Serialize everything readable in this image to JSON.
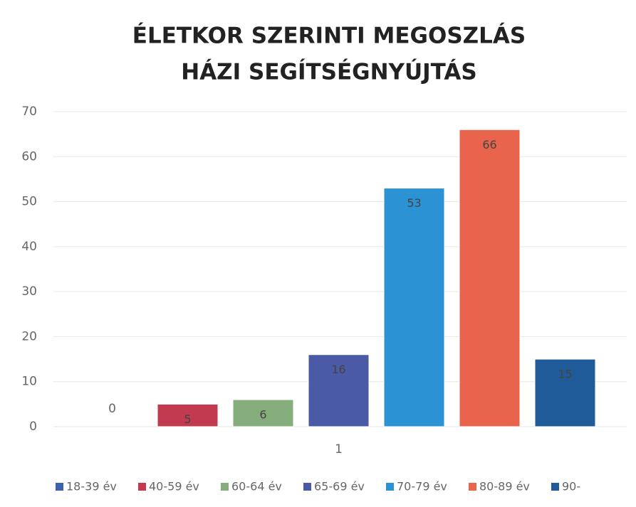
{
  "chart_data": {
    "type": "bar",
    "title": "ÉLETKOR SZERINTI MEGOSZLÁS",
    "subtitle": "HÁZI SEGÍTSÉGNYÚJTÁS",
    "categories": [
      "1"
    ],
    "series": [
      {
        "name": "18-39 év",
        "color": "#3b62ab",
        "values": [
          0
        ]
      },
      {
        "name": "40-59 év",
        "color": "#c23a4f",
        "values": [
          5
        ]
      },
      {
        "name": "60-64 év",
        "color": "#86ad7c",
        "values": [
          6
        ]
      },
      {
        "name": "65-69 év",
        "color": "#4b5aa6",
        "values": [
          16
        ]
      },
      {
        "name": "70-79 év",
        "color": "#2b92d3",
        "values": [
          53
        ]
      },
      {
        "name": "80-89 év",
        "color": "#e8644c",
        "values": [
          66
        ]
      },
      {
        "name": "90-",
        "color": "#1f5b98",
        "values": [
          15
        ]
      }
    ],
    "ylim": [
      0,
      70
    ],
    "yticks": [
      0,
      10,
      20,
      30,
      40,
      50,
      60,
      70
    ],
    "grid": true,
    "legend": "bottom"
  }
}
